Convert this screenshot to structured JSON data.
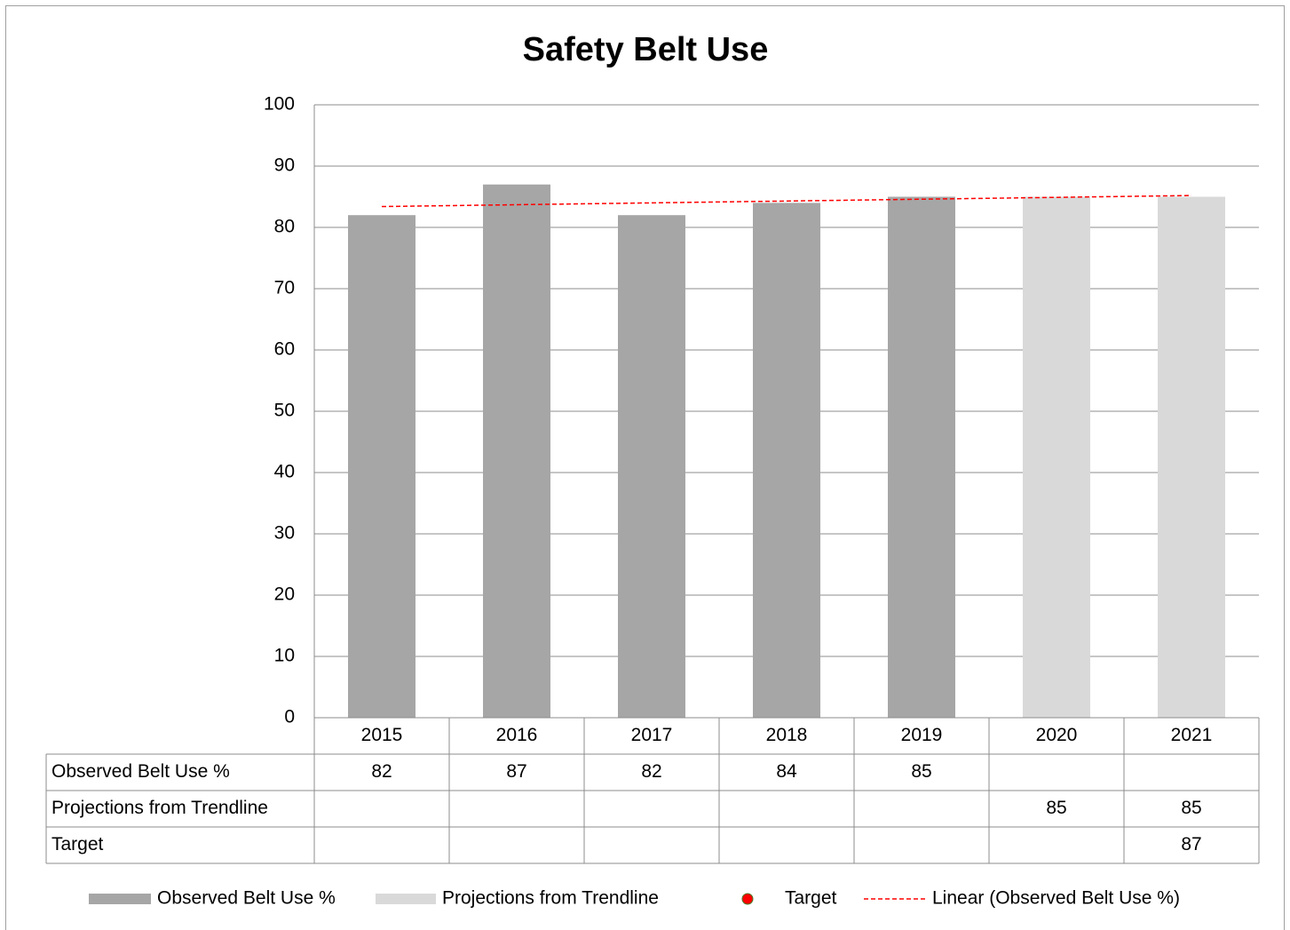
{
  "chart_data": {
    "type": "bar",
    "title": "Safety Belt Use",
    "categories": [
      "2015",
      "2016",
      "2017",
      "2018",
      "2019",
      "2020",
      "2021"
    ],
    "series": [
      {
        "name": "Observed Belt Use %",
        "color": "#a6a6a6",
        "values": [
          82,
          87,
          82,
          84,
          85,
          null,
          null
        ]
      },
      {
        "name": "Projections from Trendline",
        "color": "#d9d9d9",
        "values": [
          null,
          null,
          null,
          null,
          null,
          85,
          85
        ]
      },
      {
        "name": "Target",
        "color": "#ff0000",
        "values": [
          null,
          null,
          null,
          null,
          null,
          null,
          87
        ]
      }
    ],
    "trendline": {
      "name": "Linear (Observed Belt Use %)",
      "color": "#ff0000",
      "series": 0
    },
    "ylim": [
      0,
      100
    ],
    "yticks": [
      0,
      10,
      20,
      30,
      40,
      50,
      60,
      70,
      80,
      90,
      100
    ],
    "grid": true
  }
}
